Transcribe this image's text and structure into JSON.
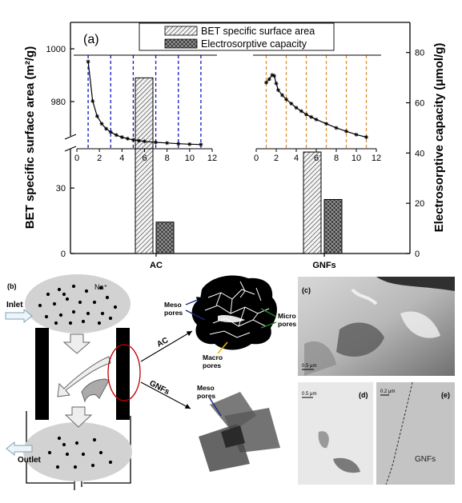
{
  "chart_data": {
    "type": "bar",
    "panel_label": "(a)",
    "categories": [
      "AC",
      "GNFs"
    ],
    "ylabel_left": "BET specific surface area (m²/g)",
    "ylabel_right": "Electrosorptive capacity (μmol/g)",
    "left_axis_lower": {
      "ticks": [
        0,
        30
      ],
      "range": [
        0,
        48
      ]
    },
    "left_axis_upper": {
      "ticks": [
        980,
        1000
      ],
      "range": [
        967,
        1010
      ]
    },
    "right_axis": {
      "ticks": [
        0,
        20,
        40,
        60,
        80
      ],
      "range": [
        0,
        92
      ]
    },
    "series": [
      {
        "name": "BET specific surface area",
        "pattern": "diagonal-hatch",
        "values": [
          989,
          46.5
        ]
      },
      {
        "name": "Electrosorptive capacity",
        "pattern": "cross-hatch",
        "values": [
          12.5,
          21.5
        ]
      }
    ],
    "legend_position": "top-center",
    "insets": [
      {
        "category": "AC",
        "xticks": [
          0,
          2,
          4,
          6,
          8,
          10,
          12
        ],
        "xlim": [
          0,
          12
        ],
        "guide_line_color": "#1414c8",
        "guide_lines_x": [
          1,
          3,
          5,
          7,
          9,
          11
        ],
        "curve": {
          "x": [
            1.0,
            1.4,
            1.8,
            2.2,
            2.6,
            3.0,
            3.5,
            4.0,
            4.5,
            5.0,
            5.5,
            6.0,
            7.0,
            8.0,
            9.0,
            10.0,
            11.0
          ],
          "y": [
            1.0,
            0.53,
            0.35,
            0.26,
            0.2,
            0.16,
            0.125,
            0.1,
            0.082,
            0.068,
            0.057,
            0.05,
            0.038,
            0.03,
            0.022,
            0.016,
            0.012
          ]
        }
      },
      {
        "category": "GNFs",
        "xticks": [
          0,
          2,
          4,
          6,
          8,
          10,
          12
        ],
        "xlim": [
          0,
          12
        ],
        "guide_line_color": "#e09030",
        "guide_lines_x": [
          1,
          3,
          5,
          7,
          9,
          11
        ],
        "curve": {
          "x": [
            1.0,
            1.3,
            1.6,
            1.8,
            2.0,
            2.2,
            2.6,
            3.0,
            3.5,
            4.0,
            4.5,
            5.0,
            5.5,
            6.0,
            7.0,
            8.0,
            9.0,
            10.0,
            11.0
          ],
          "y": [
            0.75,
            0.79,
            0.84,
            0.83,
            0.74,
            0.66,
            0.6,
            0.55,
            0.5,
            0.45,
            0.41,
            0.37,
            0.34,
            0.31,
            0.26,
            0.21,
            0.17,
            0.13,
            0.1
          ]
        }
      }
    ]
  },
  "schematic": {
    "panel_label": "(b)",
    "inlet_label": "Inlet",
    "outlet_label": "Outlet",
    "ion_label": "Na⁺",
    "ac_arrow_label": "AC",
    "gnfs_arrow_label": "GNFs",
    "ac_labels": {
      "meso": "Meso\npores",
      "micro": "Micro\npores",
      "macro": "Macro\npores"
    },
    "gnfs_labels": {
      "meso": "Meso\npores"
    },
    "arrow_colors": {
      "meso": "#1a2a80",
      "micro": "#1e8a2e",
      "macro": "#e8b800"
    }
  },
  "micrographs": {
    "c": {
      "panel_label": "(c)",
      "scale_bar": "0.5 μm"
    },
    "d": {
      "panel_label": "(d)",
      "scale_bar": "0.5 μm"
    },
    "e": {
      "panel_label": "(e)",
      "scale_bar": "0.2 μm",
      "material_label": "GNFs"
    }
  }
}
